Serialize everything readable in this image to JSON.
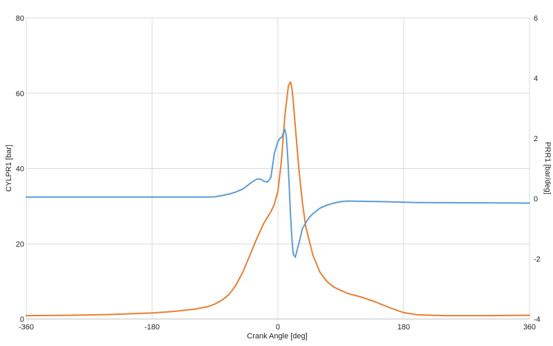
{
  "chart_data": {
    "type": "line",
    "xlabel": "Crank Angle [deg]",
    "ylabel_left": "CYLPR1 [bar]",
    "ylabel_right": "PRR1 [bar/deg]",
    "xlim": [
      -360,
      360
    ],
    "ylim_left": [
      0,
      80
    ],
    "ylim_right": [
      -4,
      6
    ],
    "x_ticks": [
      -360,
      -180,
      0,
      180,
      360
    ],
    "y_ticks_left": [
      0,
      20,
      40,
      60,
      80
    ],
    "y_ticks_right": [
      -4,
      -2,
      0,
      2,
      4,
      6
    ],
    "grid": true,
    "legend": "none",
    "series": [
      {
        "color": "#e87d30",
        "axis": "left",
        "x": [
          -360,
          -300,
          -240,
          -180,
          -150,
          -120,
          -100,
          -90,
          -80,
          -70,
          -60,
          -50,
          -40,
          -30,
          -20,
          -10,
          -5,
          0,
          5,
          10,
          15,
          18,
          20,
          22,
          25,
          30,
          35,
          40,
          50,
          60,
          70,
          80,
          90,
          100,
          120,
          140,
          160,
          180,
          200,
          240,
          300,
          360
        ],
        "values": [
          0.9,
          1.0,
          1.2,
          1.6,
          2.0,
          2.6,
          3.3,
          4.0,
          5.0,
          6.5,
          9.0,
          12.5,
          17.0,
          21.5,
          25.5,
          28.5,
          30.5,
          34.0,
          42.0,
          54.0,
          62.0,
          63.0,
          61.5,
          58.0,
          51.0,
          40.0,
          31.0,
          24.5,
          17.0,
          12.5,
          10.0,
          8.5,
          7.6,
          6.8,
          5.8,
          4.5,
          3.0,
          1.7,
          1.1,
          0.9,
          0.9,
          1.0
        ]
      },
      {
        "color": "#5b9bd5",
        "axis": "right",
        "x": [
          -360,
          -250,
          -180,
          -100,
          -90,
          -80,
          -70,
          -60,
          -50,
          -40,
          -35,
          -30,
          -25,
          -20,
          -15,
          -10,
          -5,
          0,
          3,
          6,
          8,
          10,
          12,
          14,
          16,
          18,
          20,
          22,
          25,
          27,
          30,
          35,
          40,
          45,
          50,
          60,
          70,
          80,
          90,
          100,
          150,
          200,
          300,
          360
        ],
        "values": [
          0.05,
          0.05,
          0.05,
          0.05,
          0.06,
          0.1,
          0.15,
          0.22,
          0.32,
          0.5,
          0.58,
          0.65,
          0.65,
          0.58,
          0.55,
          0.7,
          1.5,
          1.9,
          2.0,
          2.05,
          2.2,
          2.3,
          2.1,
          1.4,
          0.5,
          -0.5,
          -1.3,
          -1.85,
          -1.95,
          -1.75,
          -1.5,
          -1.0,
          -0.8,
          -0.62,
          -0.5,
          -0.32,
          -0.22,
          -0.15,
          -0.1,
          -0.08,
          -0.1,
          -0.13,
          -0.14,
          -0.15
        ]
      }
    ]
  }
}
